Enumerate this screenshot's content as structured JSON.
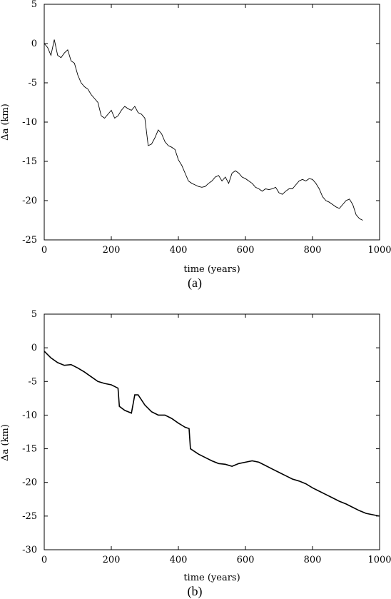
{
  "chart_data": [
    {
      "type": "line",
      "panel_label": "(a)",
      "xlabel": "time (years)",
      "ylabel": "Δa (km)",
      "xlim": [
        0,
        1000
      ],
      "ylim": [
        -25,
        5
      ],
      "xticks": [
        0,
        200,
        400,
        600,
        800,
        1000
      ],
      "yticks": [
        5,
        0,
        -5,
        -10,
        -15,
        -20,
        -25
      ],
      "grid": false,
      "legend": "none",
      "line_color": "#000000",
      "series": [
        {
          "x": [
            0,
            10,
            20,
            30,
            40,
            50,
            60,
            70,
            80,
            90,
            100,
            110,
            120,
            130,
            140,
            150,
            160,
            170,
            180,
            190,
            200,
            210,
            220,
            230,
            240,
            250,
            260,
            270,
            280,
            290,
            300,
            310,
            320,
            330,
            340,
            350,
            360,
            370,
            380,
            390,
            400,
            410,
            420,
            430,
            440,
            450,
            460,
            470,
            480,
            490,
            500,
            510,
            520,
            530,
            540,
            550,
            560,
            570,
            580,
            590,
            600,
            610,
            620,
            630,
            640,
            650,
            660,
            670,
            680,
            690,
            700,
            710,
            720,
            730,
            740,
            750,
            760,
            770,
            780,
            790,
            800,
            810,
            820,
            830,
            840,
            850,
            860,
            870,
            880,
            890,
            900,
            910,
            920,
            930,
            940,
            950
          ],
          "y": [
            0,
            -0.5,
            -1.5,
            0.5,
            -1.5,
            -1.8,
            -1.2,
            -0.8,
            -2.2,
            -2.5,
            -4,
            -5,
            -5.5,
            -5.8,
            -6.5,
            -7,
            -7.5,
            -9.2,
            -9.5,
            -9,
            -8.5,
            -9.5,
            -9.2,
            -8.5,
            -8,
            -8.3,
            -8.5,
            -8,
            -8.8,
            -9,
            -9.5,
            -13,
            -12.8,
            -12,
            -11,
            -11.5,
            -12.5,
            -13,
            -13.2,
            -13.5,
            -14.8,
            -15.5,
            -16.5,
            -17.5,
            -17.8,
            -18,
            -18.2,
            -18.3,
            -18.2,
            -17.8,
            -17.5,
            -17,
            -16.8,
            -17.5,
            -17,
            -17.8,
            -16.5,
            -16.2,
            -16.5,
            -17,
            -17.2,
            -17.5,
            -17.8,
            -18.3,
            -18.5,
            -18.8,
            -18.5,
            -18.6,
            -18.5,
            -18.3,
            -19,
            -19.2,
            -18.8,
            -18.5,
            -18.5,
            -18,
            -17.5,
            -17.3,
            -17.5,
            -17.2,
            -17.3,
            -17.8,
            -18.5,
            -19.5,
            -20,
            -20.2,
            -20.5,
            -20.8,
            -21,
            -20.5,
            -20,
            -19.8,
            -20.5,
            -21.8,
            -22.3,
            -22.5
          ]
        }
      ]
    },
    {
      "type": "line",
      "panel_label": "(b)",
      "xlabel": "time (years)",
      "ylabel": "Δa (km)",
      "xlim": [
        0,
        1000
      ],
      "ylim": [
        -30,
        5
      ],
      "xticks": [
        0,
        200,
        400,
        600,
        800,
        1000
      ],
      "yticks": [
        5,
        0,
        -5,
        -10,
        -15,
        -20,
        -25,
        -30
      ],
      "grid": false,
      "legend": "none",
      "line_color": "#000000",
      "series": [
        {
          "x": [
            0,
            20,
            40,
            60,
            80,
            100,
            120,
            140,
            160,
            180,
            200,
            220,
            224,
            240,
            260,
            270,
            280,
            300,
            320,
            340,
            360,
            380,
            400,
            420,
            432,
            436,
            460,
            480,
            500,
            520,
            540,
            560,
            580,
            600,
            620,
            640,
            660,
            680,
            700,
            720,
            740,
            760,
            780,
            800,
            820,
            840,
            860,
            880,
            900,
            920,
            940,
            960,
            980,
            1000
          ],
          "y": [
            -0.5,
            -1.5,
            -2.2,
            -2.6,
            -2.5,
            -3,
            -3.6,
            -4.3,
            -5,
            -5.3,
            -5.5,
            -6,
            -8.7,
            -9.3,
            -9.7,
            -7,
            -7,
            -8.5,
            -9.5,
            -10,
            -10,
            -10.5,
            -11.2,
            -11.8,
            -12,
            -15,
            -15.8,
            -16.3,
            -16.8,
            -17.2,
            -17.3,
            -17.6,
            -17.2,
            -17,
            -16.8,
            -17,
            -17.5,
            -18,
            -18.5,
            -19,
            -19.5,
            -19.8,
            -20.2,
            -20.8,
            -21.3,
            -21.8,
            -22.3,
            -22.8,
            -23.2,
            -23.7,
            -24.2,
            -24.6,
            -24.8,
            -25
          ]
        }
      ]
    }
  ]
}
